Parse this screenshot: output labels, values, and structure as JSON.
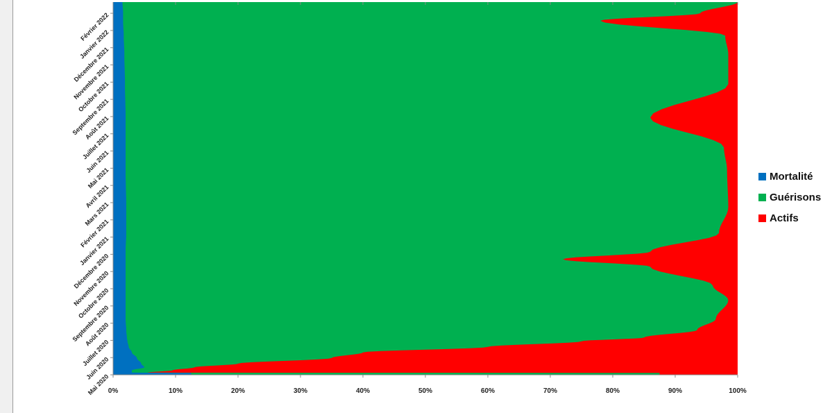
{
  "chart_data": {
    "type": "area",
    "orientation": "horizontal",
    "stacked_percent": true,
    "categories": [
      "Mai 2020",
      "Juin 2020",
      "Juillet 2020",
      "Août 2020",
      "Septembre 2020",
      "Octobre 2020",
      "Novembre 2020",
      "Décembre 2020",
      "Janvier 2021",
      "Février 2021",
      "Mars 2021",
      "Avril 2021",
      "Mai 2021",
      "Juin 2021",
      "Juillet 2021",
      "Août 2021",
      "Septembre 2021",
      "Octobre 2021",
      "Novembre 2021",
      "Décembre 2021",
      "Janvier 2022",
      "Février 2022"
    ],
    "x_ticks": [
      "0%",
      "10%",
      "20%",
      "30%",
      "40%",
      "50%",
      "60%",
      "70%",
      "80%",
      "90%",
      "100%"
    ],
    "xlim": [
      0,
      100
    ],
    "series": [
      {
        "name": "Mortalité",
        "color": "#0070c0"
      },
      {
        "name": "Guérisons",
        "color": "#00b050"
      },
      {
        "name": "Actifs",
        "color": "#ff0000"
      }
    ],
    "profile": [
      {
        "t": 0.0,
        "mortalite": 12.5,
        "guerisons_cum": 87.5
      },
      {
        "t": 0.005,
        "mortalite": 12.5,
        "guerisons_cum": 87.5
      },
      {
        "t": 0.006,
        "mortalite": 3.0,
        "guerisons_cum": 5.5
      },
      {
        "t": 0.012,
        "mortalite": 3.0,
        "guerisons_cum": 9.5
      },
      {
        "t": 0.02,
        "mortalite": 5.0,
        "guerisons_cum": 13.0
      },
      {
        "t": 0.03,
        "mortalite": 4.5,
        "guerisons_cum": 20.0
      },
      {
        "t": 0.045,
        "mortalite": 3.8,
        "guerisons_cum": 35.0
      },
      {
        "t": 0.06,
        "mortalite": 3.0,
        "guerisons_cum": 40.0
      },
      {
        "t": 0.075,
        "mortalite": 2.5,
        "guerisons_cum": 60.0
      },
      {
        "t": 0.09,
        "mortalite": 2.3,
        "guerisons_cum": 75.0
      },
      {
        "t": 0.1,
        "mortalite": 2.2,
        "guerisons_cum": 85.0
      },
      {
        "t": 0.12,
        "mortalite": 2.1,
        "guerisons_cum": 93.5
      },
      {
        "t": 0.15,
        "mortalite": 2.0,
        "guerisons_cum": 96.5
      },
      {
        "t": 0.2,
        "mortalite": 2.0,
        "guerisons_cum": 98.5
      },
      {
        "t": 0.24,
        "mortalite": 2.0,
        "guerisons_cum": 96.0
      },
      {
        "t": 0.29,
        "mortalite": 2.0,
        "guerisons_cum": 86.0
      },
      {
        "t": 0.31,
        "mortalite": 2.0,
        "guerisons_cum": 72.0
      },
      {
        "t": 0.33,
        "mortalite": 2.0,
        "guerisons_cum": 86.0
      },
      {
        "t": 0.38,
        "mortalite": 2.1,
        "guerisons_cum": 97.0
      },
      {
        "t": 0.45,
        "mortalite": 2.1,
        "guerisons_cum": 98.5
      },
      {
        "t": 0.55,
        "mortalite": 2.0,
        "guerisons_cum": 98.3
      },
      {
        "t": 0.61,
        "mortalite": 2.0,
        "guerisons_cum": 97.8
      },
      {
        "t": 0.69,
        "mortalite": 2.0,
        "guerisons_cum": 86.0
      },
      {
        "t": 0.78,
        "mortalite": 1.9,
        "guerisons_cum": 98.5
      },
      {
        "t": 0.86,
        "mortalite": 1.8,
        "guerisons_cum": 98.5
      },
      {
        "t": 0.91,
        "mortalite": 1.7,
        "guerisons_cum": 98.0
      },
      {
        "t": 0.95,
        "mortalite": 1.6,
        "guerisons_cum": 78.0
      },
      {
        "t": 0.97,
        "mortalite": 1.6,
        "guerisons_cum": 94.0
      },
      {
        "t": 1.0,
        "mortalite": 1.5,
        "guerisons_cum": 100.0
      }
    ]
  },
  "legend": {
    "items": [
      {
        "label": "Mortalité",
        "color": "#0070c0"
      },
      {
        "label": "Guérisons",
        "color": "#00b050"
      },
      {
        "label": "Actifs",
        "color": "#ff0000"
      }
    ]
  }
}
